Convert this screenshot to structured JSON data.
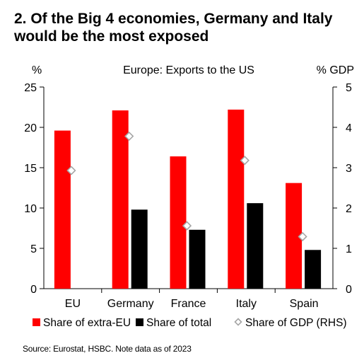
{
  "title": "2. Of the Big 4 economies, Germany and Italy would be the most exposed",
  "source": "Source: Eurostat, HSBC. Note data as of 2023",
  "chart_data": {
    "type": "bar",
    "subtitle": "Europe: Exports to the US",
    "ylabel_left": "%",
    "ylabel_right": "% GDP",
    "categories": [
      "EU",
      "Germany",
      "France",
      "Italy",
      "Spain"
    ],
    "ylim_left": [
      0,
      25
    ],
    "ylim_right": [
      0,
      5
    ],
    "yticks_left": [
      "0",
      "5",
      "10",
      "15",
      "20",
      "25"
    ],
    "yticks_right": [
      "0",
      "1",
      "2",
      "3",
      "4",
      "5"
    ],
    "grid": false,
    "legend_position": "bottom",
    "series": [
      {
        "name": "Share of extra-EU",
        "type": "bar",
        "axis": "left",
        "color": "#ff0000",
        "values": [
          19.6,
          22.1,
          16.4,
          22.2,
          13.1
        ]
      },
      {
        "name": "Share of total",
        "type": "bar",
        "axis": "left",
        "color": "#000000",
        "values": [
          null,
          9.8,
          7.3,
          10.6,
          4.8
        ]
      },
      {
        "name": "Share of GDP (RHS)",
        "type": "marker",
        "marker": "diamond",
        "axis": "right",
        "color": "#a6a6a6",
        "values": [
          2.93,
          3.78,
          1.56,
          3.18,
          1.29
        ]
      }
    ]
  }
}
